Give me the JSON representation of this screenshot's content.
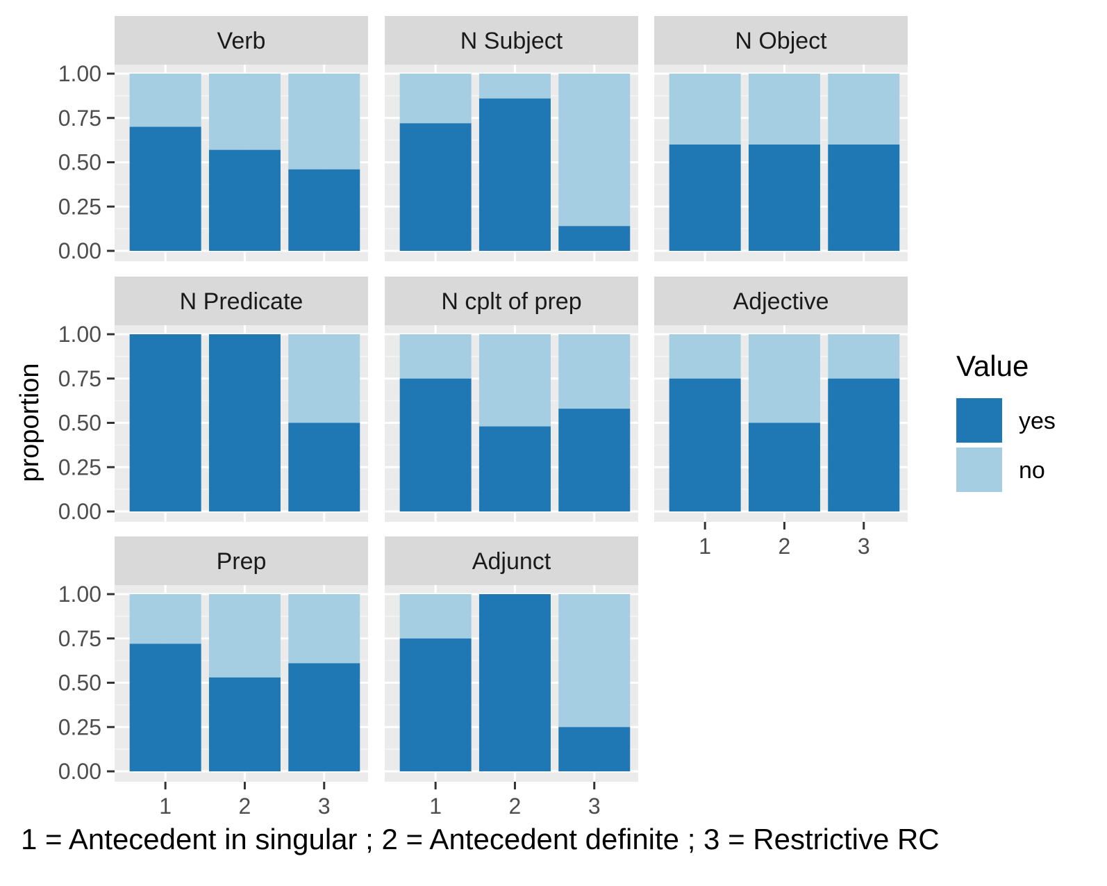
{
  "chart_data": {
    "type": "bar",
    "stacked": true,
    "facet_layout": "3 columns, 3 rows",
    "categories": [
      "1",
      "2",
      "3"
    ],
    "ylabel": "proportion",
    "xlabel": "1 = Antecedent in singular ; 2 = Antecedent definite ; 3 = Restrictive RC",
    "ylim": [
      0,
      1
    ],
    "yticks": [
      "0.00",
      "0.25",
      "0.50",
      "0.75",
      "1.00"
    ],
    "legend": {
      "title": "Value",
      "placement": "right",
      "entries": [
        {
          "name": "yes",
          "color": "#1f78b4"
        },
        {
          "name": "no",
          "color": "#a6cee3"
        }
      ]
    },
    "grid": true,
    "panels": [
      {
        "title": "Verb",
        "yes": [
          0.7,
          0.57,
          0.46
        ]
      },
      {
        "title": "N Subject",
        "yes": [
          0.72,
          0.86,
          0.14
        ]
      },
      {
        "title": "N Object",
        "yes": [
          0.6,
          0.6,
          0.6
        ]
      },
      {
        "title": "N Predicate",
        "yes": [
          1.0,
          1.0,
          0.5
        ]
      },
      {
        "title": "N cplt of prep",
        "yes": [
          0.75,
          0.48,
          0.58
        ]
      },
      {
        "title": "Adjective",
        "yes": [
          0.75,
          0.5,
          0.75
        ]
      },
      {
        "title": "Prep",
        "yes": [
          0.72,
          0.53,
          0.61
        ]
      },
      {
        "title": "Adjunct",
        "yes": [
          0.75,
          1.0,
          0.25
        ]
      }
    ]
  }
}
